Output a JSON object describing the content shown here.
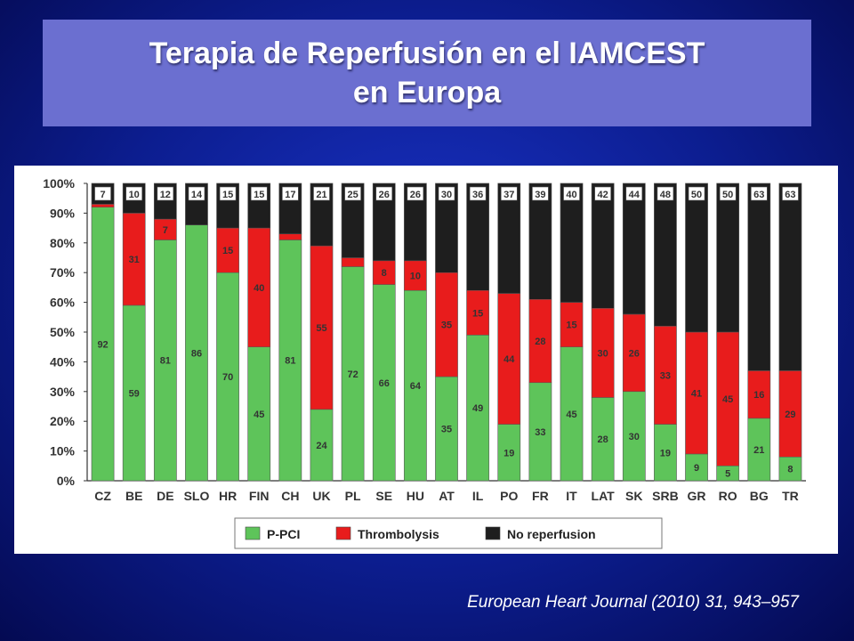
{
  "slide": {
    "title_line1": "Terapia de Reperfusión en el IAMCEST",
    "title_line2": "en Europa",
    "citation": "European Heart Journal (2010) 31, 943–957"
  },
  "chart_data": {
    "type": "bar",
    "stacked": true,
    "title": "",
    "xlabel": "",
    "ylabel": "",
    "ylim": [
      0,
      100
    ],
    "y_ticks": [
      "0%",
      "10%",
      "20%",
      "30%",
      "40%",
      "50%",
      "60%",
      "70%",
      "80%",
      "90%",
      "100%"
    ],
    "categories": [
      "CZ",
      "BE",
      "DE",
      "SLO",
      "HR",
      "FIN",
      "CH",
      "UK",
      "PL",
      "SE",
      "HU",
      "AT",
      "IL",
      "PO",
      "FR",
      "IT",
      "LAT",
      "SK",
      "SRB",
      "GR",
      "RO",
      "BG",
      "TR"
    ],
    "series": [
      {
        "name": "P-PCI",
        "color": "#5ec45a",
        "values": [
          92,
          59,
          81,
          86,
          70,
          45,
          81,
          24,
          72,
          66,
          64,
          35,
          49,
          19,
          33,
          45,
          28,
          30,
          19,
          9,
          5,
          21,
          8
        ]
      },
      {
        "name": "Thrombolysis",
        "color": "#e81c1c",
        "values": [
          1,
          31,
          7,
          0,
          15,
          40,
          2,
          55,
          3,
          8,
          10,
          35,
          15,
          44,
          28,
          15,
          30,
          26,
          33,
          41,
          45,
          16,
          29
        ]
      },
      {
        "name": "No reperfusion",
        "color": "#1e1e1e",
        "values": [
          7,
          10,
          12,
          14,
          15,
          15,
          17,
          21,
          25,
          26,
          26,
          30,
          36,
          37,
          39,
          40,
          42,
          44,
          48,
          50,
          50,
          63,
          63
        ]
      }
    ],
    "labels_shown": {
      "P-PCI": [
        true,
        true,
        true,
        true,
        true,
        true,
        true,
        true,
        true,
        true,
        true,
        true,
        true,
        true,
        true,
        true,
        true,
        true,
        true,
        true,
        true,
        true,
        true
      ],
      "Thrombolysis": [
        false,
        true,
        true,
        false,
        true,
        true,
        false,
        true,
        false,
        true,
        true,
        true,
        true,
        true,
        true,
        true,
        true,
        true,
        true,
        true,
        true,
        true,
        true
      ],
      "No reperfusion": [
        true,
        true,
        true,
        true,
        true,
        true,
        true,
        true,
        true,
        true,
        true,
        true,
        true,
        true,
        true,
        true,
        true,
        true,
        true,
        true,
        true,
        true,
        true
      ]
    },
    "grid": false,
    "legend_position": "bottom"
  }
}
